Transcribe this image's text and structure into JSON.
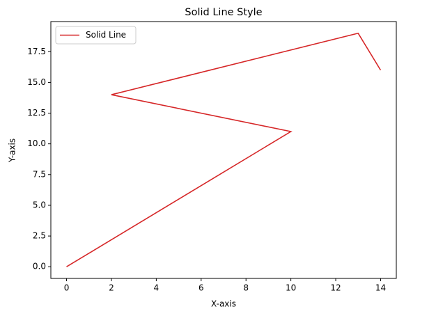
{
  "chart_data": {
    "type": "line",
    "title": "Solid Line Style",
    "x_label": "X-axis",
    "y_label": "Y-axis",
    "x": [
      0,
      10,
      2,
      13,
      14
    ],
    "series": [
      {
        "name": "Solid Line",
        "color": "#d62728",
        "values": [
          0,
          11,
          14,
          19,
          16
        ]
      }
    ],
    "xlim": [
      -0.7,
      14.7
    ],
    "ylim": [
      -0.95,
      19.95
    ],
    "xticks": [
      0,
      2,
      4,
      6,
      8,
      10,
      12,
      14
    ],
    "yticks": [
      {
        "value": 0,
        "label": "0.0"
      },
      {
        "value": 2.5,
        "label": "2.5"
      },
      {
        "value": 5,
        "label": "5.0"
      },
      {
        "value": 7.5,
        "label": "7.5"
      },
      {
        "value": 10,
        "label": "10.0"
      },
      {
        "value": 12.5,
        "label": "12.5"
      },
      {
        "value": 15,
        "label": "15.0"
      },
      {
        "value": 17.5,
        "label": "17.5"
      }
    ],
    "grid": false,
    "legend": "upper left"
  }
}
